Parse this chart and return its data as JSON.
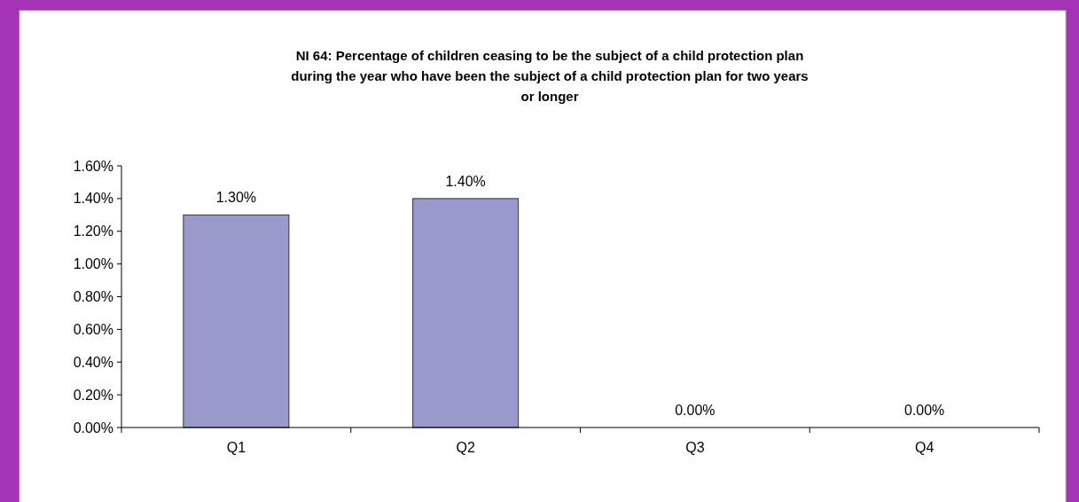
{
  "chart_data": {
    "type": "bar",
    "title": "NI 64: Percentage of children ceasing to be the subject of a child protection plan during the year who have been the subject of a child protection plan for two years or longer",
    "categories": [
      "Q1",
      "Q2",
      "Q3",
      "Q4"
    ],
    "values": [
      1.3,
      1.4,
      0,
      0
    ],
    "value_labels": [
      "1.30%",
      "1.40%",
      "0.00%",
      "0.00%"
    ],
    "color": "#9999cc",
    "ylim": [
      0,
      1.6
    ],
    "yticks": [
      {
        "value": 0,
        "label": "0.00%"
      },
      {
        "value": 0.2,
        "label": "0.20%"
      },
      {
        "value": 0.4,
        "label": "0.40%"
      },
      {
        "value": 0.6,
        "label": "0.60%"
      },
      {
        "value": 0.8,
        "label": "0.80%"
      },
      {
        "value": 1.0,
        "label": "1.00%"
      },
      {
        "value": 1.2,
        "label": "1.20%"
      },
      {
        "value": 1.4,
        "label": "1.40%"
      },
      {
        "value": 1.6,
        "label": "1.60%"
      }
    ],
    "grid": false
  }
}
